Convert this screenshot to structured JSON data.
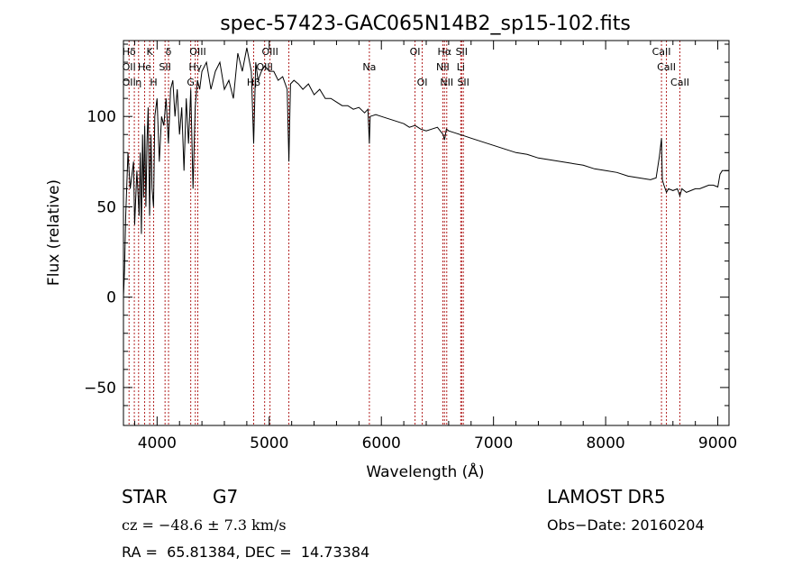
{
  "chart_data": {
    "type": "line",
    "title": "spec-57423-GAC065N14B2_sp15-102.fits",
    "xlabel": "Wavelength (Å)",
    "ylabel": "Flux (relative)",
    "xlim": [
      3700,
      9100
    ],
    "ylim": [
      -71,
      142
    ],
    "xticks": [
      4000,
      5000,
      6000,
      7000,
      8000,
      9000
    ],
    "yticks": [
      -50,
      0,
      50,
      100
    ],
    "grid": false,
    "line_color": "#000000",
    "marker_color": "#b22222",
    "series": [
      {
        "x": [
          3700,
          3710,
          3720,
          3740,
          3760,
          3790,
          3800,
          3820,
          3840,
          3850,
          3860,
          3870,
          3880,
          3890,
          3900,
          3910,
          3920,
          3933,
          3945,
          3955,
          3968,
          3980,
          4000,
          4020,
          4040,
          4060,
          4080,
          4101,
          4120,
          4140,
          4160,
          4180,
          4200,
          4220,
          4240,
          4260,
          4280,
          4300,
          4320,
          4340,
          4360,
          4380,
          4400,
          4440,
          4480,
          4520,
          4560,
          4600,
          4640,
          4680,
          4720,
          4760,
          4800,
          4840,
          4861,
          4880,
          4900,
          4930,
          4960,
          5000,
          5040,
          5080,
          5120,
          5160,
          5175,
          5183,
          5190,
          5220,
          5260,
          5300,
          5350,
          5400,
          5450,
          5500,
          5550,
          5600,
          5650,
          5700,
          5750,
          5800,
          5850,
          5880,
          5893,
          5900,
          5950,
          6000,
          6050,
          6100,
          6150,
          6200,
          6250,
          6300,
          6350,
          6400,
          6450,
          6500,
          6550,
          6563,
          6580,
          6600,
          6650,
          6700,
          6750,
          6800,
          6900,
          7000,
          7100,
          7200,
          7300,
          7400,
          7500,
          7600,
          7700,
          7800,
          7900,
          8000,
          8100,
          8200,
          8300,
          8400,
          8450,
          8480,
          8498,
          8505,
          8520,
          8542,
          8560,
          8600,
          8640,
          8662,
          8680,
          8720,
          8760,
          8800,
          8840,
          8880,
          8920,
          8960,
          9000,
          9020,
          9040,
          9060,
          9070,
          9080,
          9090,
          9100,
          9100
        ],
        "y": [
          0,
          15,
          45,
          80,
          60,
          75,
          40,
          70,
          45,
          80,
          35,
          90,
          55,
          95,
          50,
          85,
          105,
          45,
          90,
          60,
          50,
          100,
          110,
          75,
          100,
          95,
          110,
          85,
          115,
          120,
          100,
          115,
          90,
          105,
          70,
          110,
          85,
          115,
          60,
          105,
          120,
          115,
          125,
          130,
          115,
          125,
          130,
          115,
          120,
          110,
          135,
          125,
          138,
          125,
          85,
          130,
          120,
          125,
          128,
          125,
          125,
          120,
          122,
          115,
          75,
          100,
          118,
          120,
          118,
          115,
          118,
          112,
          115,
          110,
          110,
          108,
          106,
          106,
          104,
          105,
          102,
          104,
          85,
          100,
          101,
          100,
          99,
          98,
          97,
          96,
          94,
          95,
          93,
          92,
          93,
          94,
          90,
          87,
          93,
          92,
          91,
          90,
          89,
          88,
          86,
          84,
          82,
          80,
          79,
          77,
          76,
          75,
          74,
          73,
          71,
          70,
          69,
          67,
          66,
          65,
          66,
          78,
          88,
          65,
          62,
          58,
          60,
          59,
          60,
          56,
          60,
          58,
          59,
          60,
          60,
          61,
          62,
          62,
          61,
          68,
          70,
          70,
          70,
          70,
          70,
          70,
          0
        ]
      }
    ],
    "line_markers": [
      {
        "wavelength": 3750,
        "labels": [
          {
            "text": "Hδ",
            "row": 0
          },
          {
            "text": "OII",
            "row": 1
          },
          {
            "text": "OII",
            "row": 2
          }
        ]
      },
      {
        "wavelength": 3797,
        "labels": []
      },
      {
        "wavelength": 3835,
        "labels": [
          {
            "text": "η",
            "row": 2
          }
        ]
      },
      {
        "wavelength": 3889,
        "labels": [
          {
            "text": "He",
            "row": 1
          }
        ]
      },
      {
        "wavelength": 3934,
        "labels": [
          {
            "text": "K",
            "row": 0
          }
        ]
      },
      {
        "wavelength": 3969,
        "labels": [
          {
            "text": "H",
            "row": 2
          }
        ]
      },
      {
        "wavelength": 4071,
        "labels": [
          {
            "text": "SII",
            "row": 1
          }
        ]
      },
      {
        "wavelength": 4102,
        "labels": [
          {
            "text": "δ",
            "row": 0
          }
        ]
      },
      {
        "wavelength": 4300,
        "labels": [
          {
            "text": "G",
            "row": 2
          }
        ]
      },
      {
        "wavelength": 4341,
        "labels": [
          {
            "text": "Hγ",
            "row": 1
          }
        ]
      },
      {
        "wavelength": 4363,
        "labels": [
          {
            "text": "OIII",
            "row": 0
          }
        ]
      },
      {
        "wavelength": 4861,
        "labels": [
          {
            "text": "Hβ",
            "row": 2
          }
        ]
      },
      {
        "wavelength": 4959,
        "labels": [
          {
            "text": "OIII",
            "row": 1
          }
        ]
      },
      {
        "wavelength": 5007,
        "labels": [
          {
            "text": "OIII",
            "row": 0
          }
        ]
      },
      {
        "wavelength": 5175,
        "labels": []
      },
      {
        "wavelength": 5893,
        "labels": [
          {
            "text": "Na",
            "row": 1
          }
        ]
      },
      {
        "wavelength": 6300,
        "labels": [
          {
            "text": "OI",
            "row": 0
          }
        ]
      },
      {
        "wavelength": 6364,
        "labels": [
          {
            "text": "OI",
            "row": 2
          }
        ]
      },
      {
        "wavelength": 6548,
        "labels": [
          {
            "text": "NII",
            "row": 1
          }
        ]
      },
      {
        "wavelength": 6563,
        "labels": [
          {
            "text": "Hα",
            "row": 0
          }
        ]
      },
      {
        "wavelength": 6583,
        "labels": [
          {
            "text": "NII",
            "row": 2
          }
        ]
      },
      {
        "wavelength": 6708,
        "labels": [
          {
            "text": "Li",
            "row": 1
          }
        ]
      },
      {
        "wavelength": 6716,
        "labels": [
          {
            "text": "SII",
            "row": 0
          }
        ]
      },
      {
        "wavelength": 6731,
        "labels": [
          {
            "text": "SII",
            "row": 2
          }
        ]
      },
      {
        "wavelength": 8498,
        "labels": [
          {
            "text": "CaII",
            "row": 0
          }
        ]
      },
      {
        "wavelength": 8542,
        "labels": [
          {
            "text": "CaII",
            "row": 1
          }
        ]
      },
      {
        "wavelength": 8662,
        "labels": [
          {
            "text": "CaII",
            "row": 2
          }
        ]
      }
    ]
  },
  "info": {
    "object_class": "STAR",
    "subclass": "G7",
    "survey": "LAMOST DR5",
    "cz": "cz = −48.6 ± 7.3 km/s",
    "obs_date": "Obs−Date: 20160204",
    "coords": "RA =  65.81384, DEC =  14.73384"
  }
}
